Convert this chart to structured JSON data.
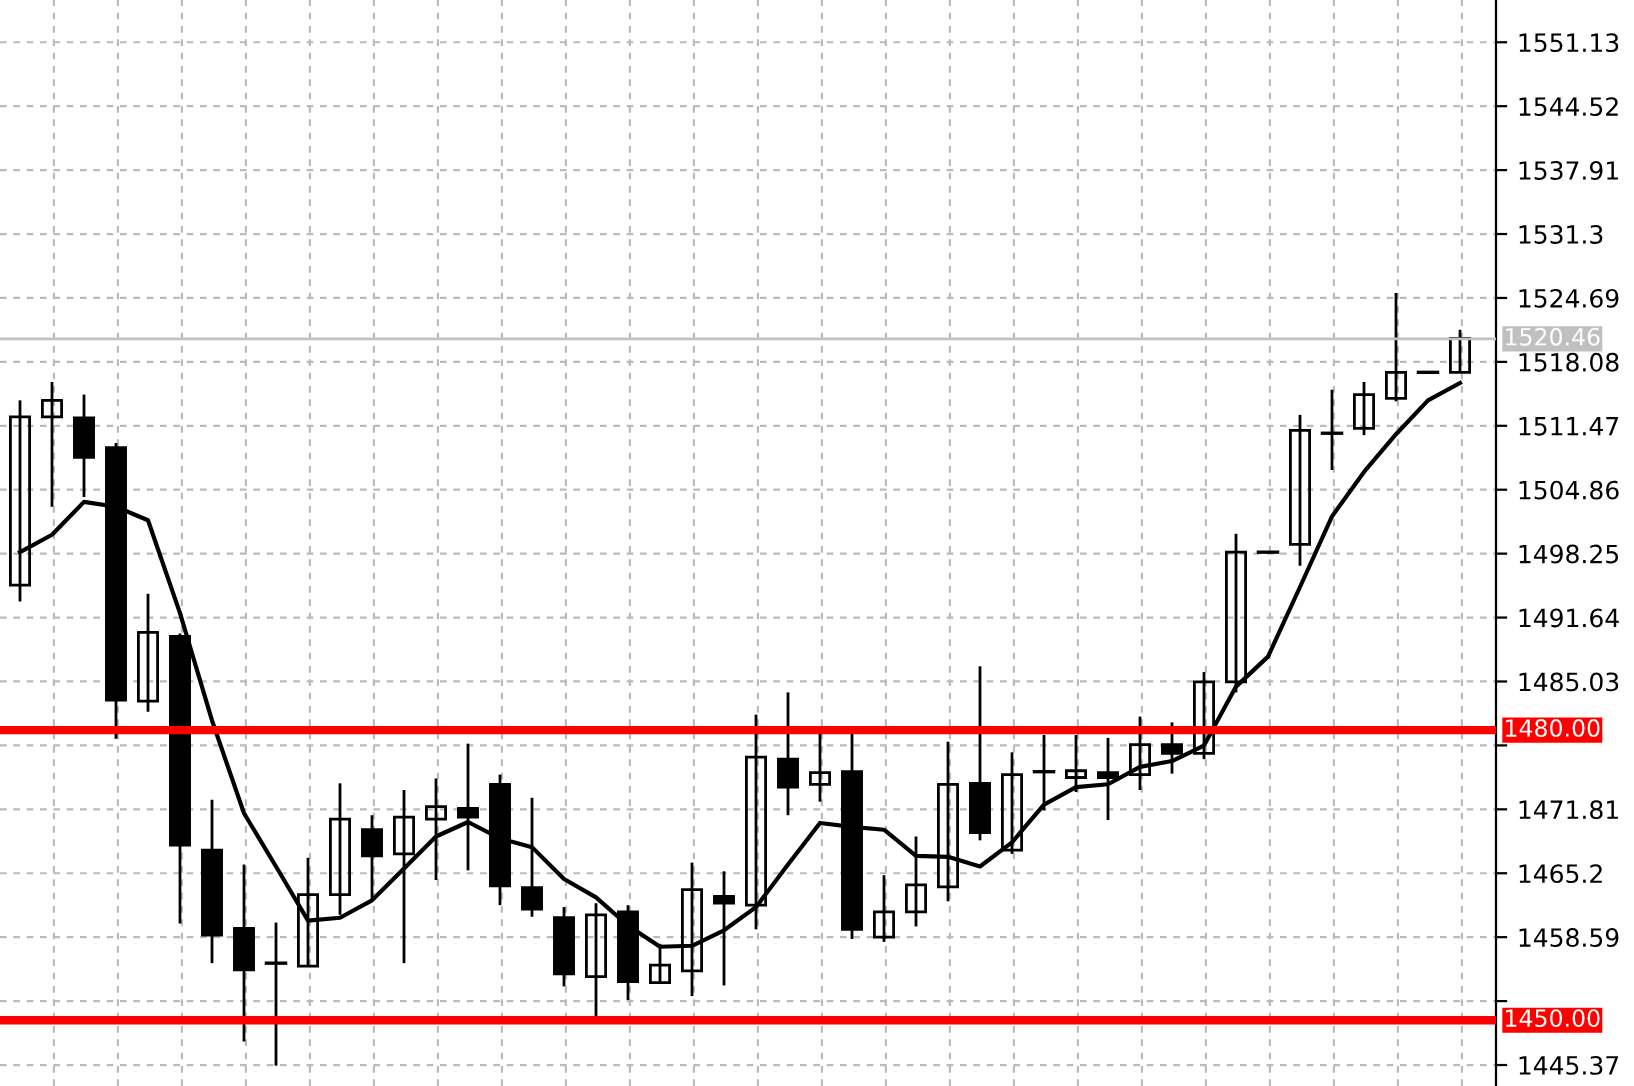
{
  "chart_data": {
    "type": "candlestick",
    "categories": [
      null,
      null,
      null,
      null,
      null,
      null,
      null,
      null,
      null,
      null,
      null,
      null,
      null,
      null,
      null,
      null,
      null,
      null,
      null,
      null,
      null,
      null,
      null,
      null,
      null,
      null,
      null,
      null,
      null,
      null,
      null,
      null,
      null,
      null,
      null,
      null,
      null,
      null,
      null,
      null,
      null,
      null,
      null,
      null,
      null,
      null
    ],
    "ohlc": [
      [
        1495.0,
        1514.1,
        1493.3,
        1512.4
      ],
      [
        1512.4,
        1516.0,
        1503.1,
        1514.1
      ],
      [
        1512.3,
        1514.7,
        1504.1,
        1508.2
      ],
      [
        1509.2,
        1509.7,
        1479.1,
        1483.1
      ],
      [
        1483.0,
        1494.1,
        1481.9,
        1490.1
      ],
      [
        1489.7,
        1490.0,
        1460.0,
        1468.1
      ],
      [
        1467.6,
        1472.8,
        1455.9,
        1458.8
      ],
      [
        1459.5,
        1466.1,
        1447.8,
        1455.2
      ],
      [
        1455.9,
        1460.1,
        1445.3,
        1455.9
      ],
      [
        1455.6,
        1466.8,
        1455.6,
        1463.0
      ],
      [
        1463.0,
        1474.5,
        1460.9,
        1470.8
      ],
      [
        1469.7,
        1471.2,
        1462.4,
        1467.0
      ],
      [
        1467.2,
        1473.8,
        1455.9,
        1471.0
      ],
      [
        1470.8,
        1475.0,
        1464.5,
        1472.1
      ],
      [
        1471.9,
        1478.6,
        1465.5,
        1471.0
      ],
      [
        1474.4,
        1475.4,
        1461.9,
        1463.9
      ],
      [
        1463.7,
        1473.0,
        1460.7,
        1461.5
      ],
      [
        1460.6,
        1461.7,
        1453.5,
        1454.8
      ],
      [
        1454.5,
        1462.1,
        1450.3,
        1460.9
      ],
      [
        1461.2,
        1461.9,
        1452.1,
        1454.0
      ],
      [
        1453.9,
        1457.9,
        1453.9,
        1455.7
      ],
      [
        1455.1,
        1466.3,
        1452.5,
        1463.5
      ],
      [
        1462.8,
        1465.4,
        1453.6,
        1462.1
      ],
      [
        1461.9,
        1481.6,
        1459.4,
        1477.2
      ],
      [
        1477.0,
        1483.9,
        1471.2,
        1474.1
      ],
      [
        1474.4,
        1479.6,
        1472.6,
        1475.6
      ],
      [
        1475.7,
        1479.6,
        1458.4,
        1459.4
      ],
      [
        1458.6,
        1465.0,
        1458.1,
        1461.2
      ],
      [
        1461.2,
        1469.0,
        1459.7,
        1464.0
      ],
      [
        1463.8,
        1478.8,
        1462.3,
        1474.4
      ],
      [
        1474.5,
        1486.6,
        1468.6,
        1469.4
      ],
      [
        1467.6,
        1477.7,
        1467.2,
        1475.4
      ],
      [
        1475.7,
        1479.5,
        1471.7,
        1475.7
      ],
      [
        1475.1,
        1479.5,
        1473.6,
        1475.8
      ],
      [
        1475.6,
        1479.2,
        1470.7,
        1475.1
      ],
      [
        1475.4,
        1481.4,
        1473.8,
        1478.5
      ],
      [
        1478.5,
        1480.8,
        1475.5,
        1477.6
      ],
      [
        1477.6,
        1486.0,
        1477.0,
        1485.0
      ],
      [
        1485.0,
        1500.3,
        1483.9,
        1498.4
      ],
      [
        1498.4,
        1498.4,
        1498.4,
        1498.4
      ],
      [
        1499.2,
        1512.6,
        1497.0,
        1511.0
      ],
      [
        1510.7,
        1515.2,
        1506.9,
        1510.7
      ],
      [
        1511.2,
        1516.0,
        1510.5,
        1514.7
      ],
      [
        1514.3,
        1525.2,
        1514.0,
        1517.0
      ],
      [
        1517.0,
        1517.0,
        1517.0,
        1517.0
      ],
      [
        1517.0,
        1521.4,
        1517.0,
        1520.5
      ]
    ],
    "series": [
      {
        "type": "line",
        "color": "#000000",
        "values": [
          1498.4,
          1500.2,
          1503.6,
          1503.1,
          1501.7,
          1492.1,
          1481.0,
          1471.4,
          1465.9,
          1460.3,
          1460.6,
          1462.4,
          1465.7,
          1469.0,
          1470.5,
          1468.8,
          1467.9,
          1464.6,
          1462.7,
          1459.8,
          1457.6,
          1457.7,
          1459.3,
          1461.7,
          1466.1,
          1470.4,
          1470.0,
          1469.7,
          1467.0,
          1466.9,
          1465.9,
          1468.4,
          1472.3,
          1474.1,
          1474.4,
          1476.2,
          1476.8,
          1478.4,
          1484.5,
          1487.6,
          1494.8,
          1502.1,
          1506.7,
          1510.6,
          1514.1,
          1515.9
        ]
      }
    ],
    "ylim": [
      1443.2,
      1555.5
    ],
    "yticks": [
      1445.37,
      {
        "value": 1451.98,
        "label": null
      },
      1458.59,
      1465.2,
      1471.81,
      {
        "value": 1478.42,
        "label": null
      },
      1485.03,
      1491.64,
      1498.25,
      1504.86,
      1511.47,
      1518.08,
      1524.69,
      1531.3,
      1537.91,
      1544.52,
      1551.13
    ],
    "ref_lines": [
      {
        "axis": "y",
        "value": 1480.0,
        "label": "1480.00",
        "color": "#ff0000"
      },
      {
        "axis": "y",
        "value": 1450.0,
        "label": "1450.00",
        "color": "#ff0000"
      },
      {
        "axis": "y",
        "value": 1520.46,
        "label": "1520.46",
        "color": "#c0c0c0"
      }
    ],
    "grid": true,
    "tick_labels": "y"
  }
}
